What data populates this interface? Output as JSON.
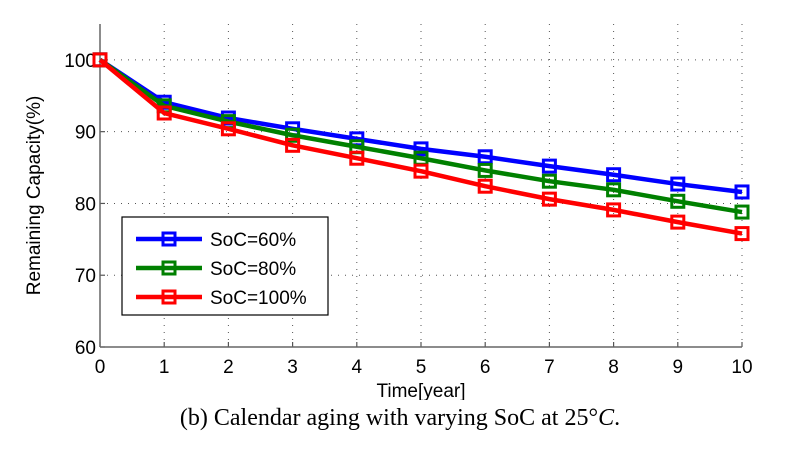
{
  "chart_data": {
    "type": "line",
    "title": "",
    "xlabel": "Time[year]",
    "ylabel": "Remaining Capacity(%)",
    "xlim": [
      0,
      10
    ],
    "ylim": [
      60,
      105
    ],
    "xticks": [
      0,
      1,
      2,
      3,
      4,
      5,
      6,
      7,
      8,
      9,
      10
    ],
    "yticks": [
      60,
      70,
      80,
      90,
      100
    ],
    "grid": true,
    "legend_position": "lower-left",
    "x": [
      0,
      1,
      2,
      3,
      4,
      5,
      6,
      7,
      8,
      9,
      10
    ],
    "series": [
      {
        "name": "SoC=60%",
        "color": "#0000ff",
        "marker": "square",
        "values": [
          100,
          94.1,
          91.9,
          90.4,
          89.0,
          87.6,
          86.5,
          85.2,
          84.0,
          82.7,
          81.6
        ]
      },
      {
        "name": "SoC=80%",
        "color": "#008000",
        "marker": "square",
        "values": [
          100,
          93.6,
          91.4,
          89.5,
          87.9,
          86.3,
          84.6,
          83.1,
          81.9,
          80.3,
          78.8
        ]
      },
      {
        "name": "SoC=100%",
        "color": "#ff0000",
        "marker": "square",
        "values": [
          100,
          92.6,
          90.4,
          88.1,
          86.3,
          84.5,
          82.4,
          80.6,
          79.1,
          77.4,
          75.8
        ]
      }
    ]
  },
  "caption": {
    "prefix": "(b) Calendar aging with varying SoC at 25",
    "degree": "°",
    "unit": "C",
    "suffix": "."
  }
}
